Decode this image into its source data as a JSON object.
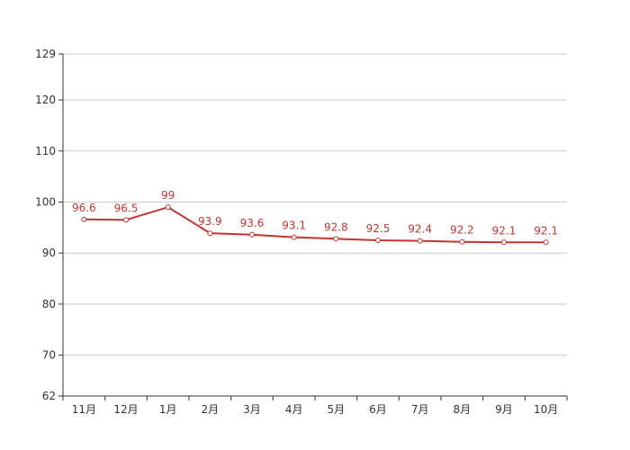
{
  "chart_data": {
    "type": "line",
    "title": "",
    "xlabel": "",
    "ylabel": "",
    "categories": [
      "11月",
      "12月",
      "1月",
      "2月",
      "3月",
      "4月",
      "5月",
      "6月",
      "7月",
      "8月",
      "9月",
      "10月"
    ],
    "series": [
      {
        "values": [
          96.6,
          96.5,
          99,
          93.9,
          93.6,
          93.1,
          92.8,
          92.5,
          92.4,
          92.2,
          92.1,
          92.1
        ],
        "value_labels": [
          "96.6",
          "96.5",
          "99",
          "93.9",
          "93.6",
          "93.1",
          "92.8",
          "92.5",
          "92.4",
          "92.2",
          "92.1",
          "92.1"
        ],
        "color": "#c23531"
      }
    ],
    "ylim": [
      62,
      129
    ],
    "yticks": [
      62,
      70,
      80,
      90,
      100,
      110,
      120,
      129
    ],
    "ytick_labels": [
      "62",
      "70",
      "80",
      "90",
      "100",
      "110",
      "120",
      "129"
    ],
    "grid": true,
    "legend": "none",
    "colors": {
      "series": "#c23531",
      "grid": "#cccccc",
      "axis": "#333333",
      "text": "#333333",
      "marker_fill": "#ffffff"
    }
  }
}
